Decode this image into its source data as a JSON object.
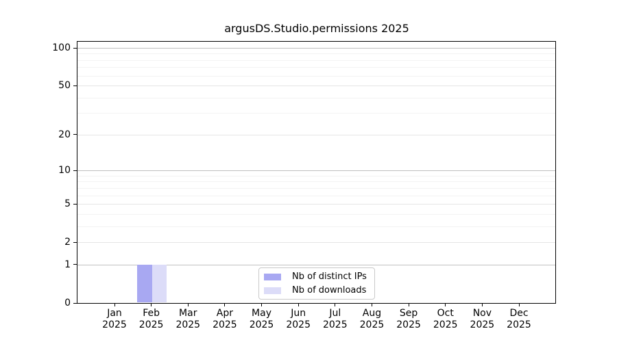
{
  "chart_data": {
    "type": "bar",
    "title": "argusDS.Studio.permissions 2025",
    "categories": [
      "Jan",
      "Feb",
      "Mar",
      "Apr",
      "May",
      "Jun",
      "Jul",
      "Aug",
      "Sep",
      "Oct",
      "Nov",
      "Dec"
    ],
    "category_year": "2025",
    "series": [
      {
        "name": "Nb of distinct IPs",
        "color": "#a8a8f2",
        "values": [
          0,
          1,
          0,
          0,
          0,
          0,
          0,
          0,
          0,
          0,
          0,
          0
        ]
      },
      {
        "name": "Nb of downloads",
        "color": "#dcdcf8",
        "values": [
          0,
          1,
          0,
          0,
          0,
          0,
          0,
          0,
          0,
          0,
          0,
          0
        ]
      }
    ],
    "yscale": "log1p",
    "ytick_labels": [
      "0",
      "1",
      "2",
      "5",
      "10",
      "20",
      "50",
      "100"
    ],
    "ytick_values": [
      0,
      1,
      2,
      5,
      10,
      20,
      50,
      100
    ],
    "minor_grid_values": [
      3,
      4,
      6,
      7,
      8,
      9,
      30,
      40,
      60,
      70,
      80,
      90
    ],
    "ylim": [
      0,
      113
    ],
    "grid": "horizontal",
    "legend_position": "bottom-center-inside",
    "colors": {
      "axis": "#000000",
      "grid_major": "#bfbfbf",
      "grid_mid": "#e5e5e5",
      "grid_minor": "#f3f3f3"
    }
  }
}
